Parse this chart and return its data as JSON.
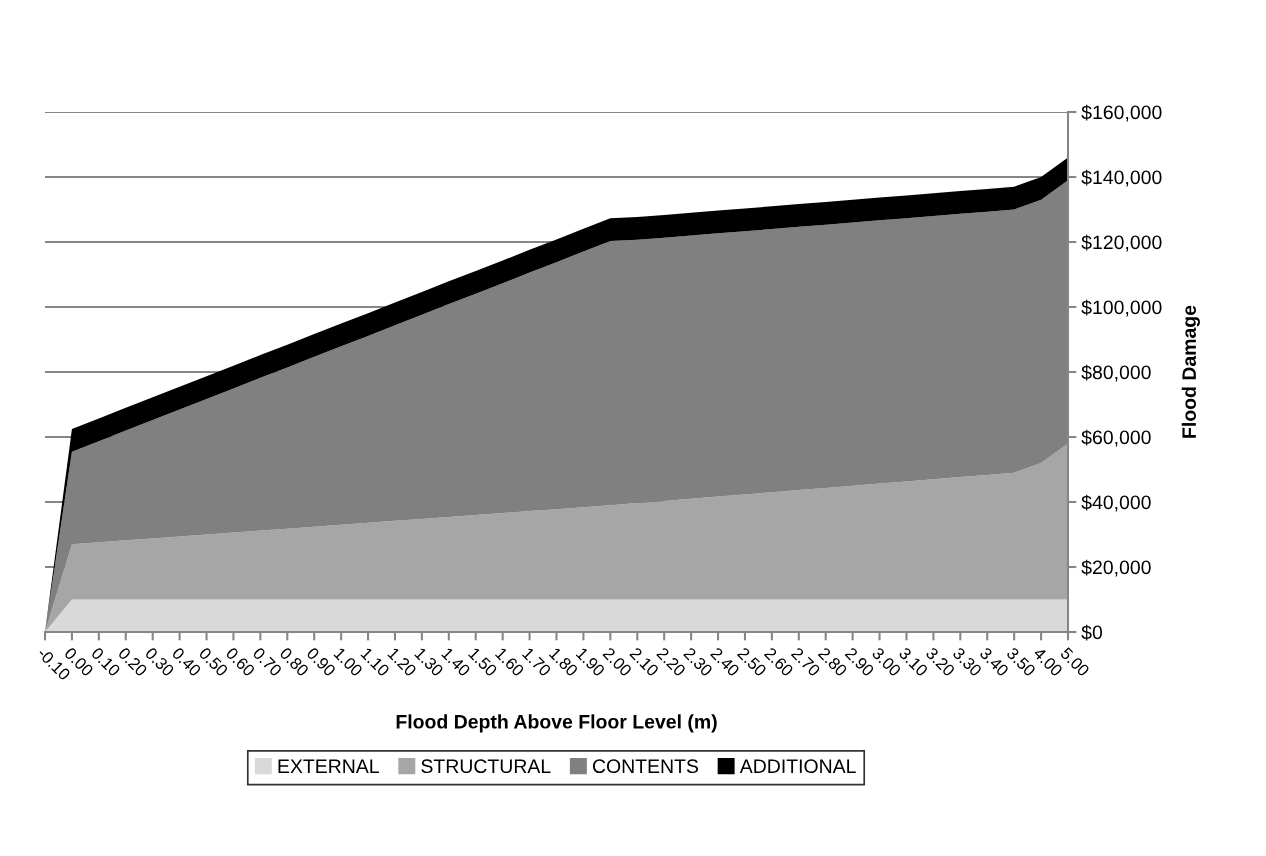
{
  "chart_data": {
    "type": "area",
    "stacked": true,
    "xlabel": "Flood Depth Above Floor Level (m)",
    "ylabel": "Flood Damage",
    "categories": [
      "-0.10",
      "0.00",
      "0.10",
      "0.20",
      "0.30",
      "0.40",
      "0.50",
      "0.60",
      "0.70",
      "0.80",
      "0.90",
      "1.00",
      "1.10",
      "1.20",
      "1.30",
      "1.40",
      "1.50",
      "1.60",
      "1.70",
      "1.80",
      "1.90",
      "2.00",
      "2.10",
      "2.20",
      "2.30",
      "2.40",
      "2.50",
      "2.60",
      "2.70",
      "2.80",
      "2.90",
      "3.00",
      "3.10",
      "3.20",
      "3.30",
      "3.40",
      "3.50",
      "4.00",
      "5.00"
    ],
    "series": [
      {
        "name": "EXTERNAL",
        "color": "#d9d9d9",
        "values": [
          0,
          10000,
          10000,
          10000,
          10000,
          10000,
          10000,
          10000,
          10000,
          10000,
          10000,
          10000,
          10000,
          10000,
          10000,
          10000,
          10000,
          10000,
          10000,
          10000,
          10000,
          10000,
          10000,
          10000,
          10000,
          10000,
          10000,
          10000,
          10000,
          10000,
          10000,
          10000,
          10000,
          10000,
          10000,
          10000,
          10000,
          10000,
          10000
        ]
      },
      {
        "name": "STRUCTURAL",
        "color": "#a6a6a6",
        "values": [
          0,
          17000,
          17600,
          18200,
          18800,
          19400,
          20000,
          20600,
          21200,
          21800,
          22400,
          23000,
          23600,
          24200,
          24800,
          25400,
          26000,
          26600,
          27200,
          27800,
          28400,
          29000,
          29700,
          30300,
          31000,
          31700,
          32300,
          33000,
          33700,
          34300,
          35000,
          35700,
          36300,
          37000,
          37700,
          38300,
          39000,
          42000,
          48000
        ]
      },
      {
        "name": "CONTENTS",
        "color": "#808080",
        "values": [
          0,
          28500,
          31100,
          33800,
          36400,
          39100,
          41700,
          44300,
          47000,
          49600,
          52300,
          54900,
          57500,
          60200,
          62800,
          65500,
          68100,
          70700,
          73400,
          76000,
          78700,
          81300,
          81000,
          81000,
          81000,
          81000,
          81000,
          81000,
          81000,
          81000,
          81000,
          81000,
          81000,
          81000,
          81000,
          81000,
          81000,
          81000,
          81000
        ]
      },
      {
        "name": "ADDITIONAL",
        "color": "#000000",
        "values": [
          0,
          7000,
          7000,
          7000,
          7000,
          7000,
          7000,
          7000,
          7000,
          7000,
          7000,
          7000,
          7000,
          7000,
          7000,
          7000,
          7000,
          7000,
          7000,
          7000,
          7000,
          7000,
          7000,
          7000,
          7000,
          7000,
          7000,
          7000,
          7000,
          7000,
          7000,
          7000,
          7000,
          7000,
          7000,
          7000,
          7000,
          7000,
          7000
        ]
      }
    ],
    "ylim": [
      0,
      160000
    ],
    "yticks": [
      {
        "value": 0,
        "label": "$0"
      },
      {
        "value": 20000,
        "label": "$20,000"
      },
      {
        "value": 40000,
        "label": "$40,000"
      },
      {
        "value": 60000,
        "label": "$60,000"
      },
      {
        "value": 80000,
        "label": "$80,000"
      },
      {
        "value": 100000,
        "label": "$100,000"
      },
      {
        "value": 120000,
        "label": "$120,000"
      },
      {
        "value": 140000,
        "label": "$140,000"
      },
      {
        "value": 160000,
        "label": "$160,000"
      }
    ],
    "grid": "y",
    "legend": "bottom"
  }
}
